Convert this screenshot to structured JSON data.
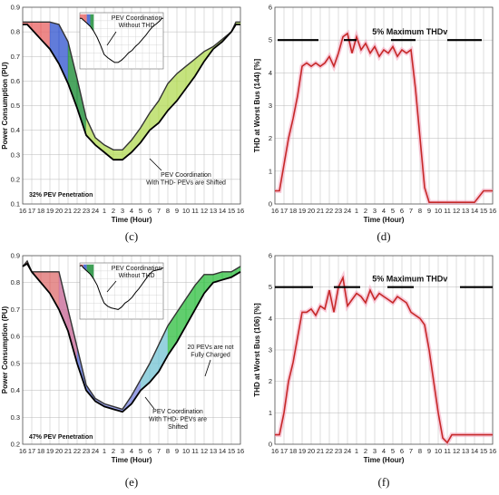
{
  "hours_tick_labels": [
    "16",
    "17",
    "18",
    "19",
    "20",
    "21",
    "22",
    "23",
    "24",
    "1",
    "2",
    "3",
    "4",
    "5",
    "6",
    "7",
    "8",
    "9",
    "10",
    "11",
    "12",
    "13",
    "14",
    "15",
    "16"
  ],
  "chart_data": [
    {
      "id": "c",
      "type": "area",
      "caption": "(c)",
      "xlabel": "Time (Hour)",
      "ylabel": "Power Consumption (PU)",
      "ylim": [
        0.1,
        0.9
      ],
      "yticks": [
        0.1,
        0.2,
        0.3,
        0.4,
        0.5,
        0.6,
        0.7,
        0.8,
        0.9
      ],
      "grid": true,
      "annotations": {
        "inset": "PEV Coordination Without THD",
        "main": "PEV Coordination With THD- PEVs are Shifted",
        "penetration": "32% PEV Penetration"
      },
      "series": [
        {
          "name": "",
          "x": [
            0,
            0.5,
            1,
            2,
            3,
            4,
            5,
            6,
            7,
            8,
            9,
            10,
            11,
            12,
            13,
            14,
            15,
            16,
            17,
            18,
            19,
            20,
            21,
            22,
            23,
            23.5,
            24
          ],
          "y": [
            0.83,
            0.83,
            0.81,
            0.77,
            0.73,
            0.67,
            0.59,
            0.49,
            0.38,
            0.34,
            0.31,
            0.28,
            0.28,
            0.31,
            0.35,
            0.4,
            0.43,
            0.48,
            0.52,
            0.57,
            0.62,
            0.68,
            0.73,
            0.76,
            0.8,
            0.83,
            0.83
          ]
        },
        {
          "name": "",
          "x": [
            0,
            0.5,
            1,
            2,
            3,
            4,
            5,
            6,
            7,
            8,
            9,
            10,
            11,
            12,
            13,
            14,
            15,
            16,
            17,
            18,
            19,
            20,
            21,
            22,
            23,
            23.5,
            24
          ],
          "y": [
            0.84,
            0.84,
            0.84,
            0.84,
            0.84,
            0.83,
            0.76,
            0.61,
            0.45,
            0.37,
            0.34,
            0.32,
            0.32,
            0.36,
            0.41,
            0.47,
            0.52,
            0.59,
            0.63,
            0.66,
            0.69,
            0.72,
            0.74,
            0.77,
            0.8,
            0.84,
            0.84
          ]
        }
      ]
    },
    {
      "id": "d",
      "type": "line",
      "caption": "(d)",
      "xlabel": "Time (Hour)",
      "ylabel": "THD at Worst Bus (144) [%]",
      "ylim": [
        0,
        6
      ],
      "yticks": [
        0,
        1,
        2,
        3,
        4,
        5,
        6
      ],
      "grid": true,
      "limit_label": "5% Maximum THDv",
      "limit_value": 5,
      "series": [
        {
          "name": "",
          "x": [
            0,
            0.5,
            1,
            1.5,
            2,
            2.5,
            3,
            3.5,
            4,
            4.5,
            5,
            5.5,
            6,
            6.5,
            7,
            7.5,
            8,
            8.5,
            9,
            9.5,
            10,
            10.5,
            11,
            11.5,
            12,
            12.5,
            13,
            13.5,
            14,
            14.5,
            15,
            15.5,
            16,
            16.5,
            17,
            17.5,
            18,
            18.5,
            19,
            19.5,
            20,
            21,
            22,
            23,
            23.5,
            24
          ],
          "y": [
            0.4,
            0.4,
            1.2,
            2.0,
            2.6,
            3.3,
            4.2,
            4.3,
            4.2,
            4.3,
            4.2,
            4.3,
            4.5,
            4.2,
            4.6,
            5.1,
            5.2,
            4.6,
            5.1,
            4.7,
            4.9,
            4.6,
            4.8,
            4.5,
            4.7,
            4.6,
            4.8,
            4.5,
            4.7,
            4.6,
            4.7,
            3.5,
            2.0,
            0.5,
            0.05,
            0.05,
            0.05,
            0.05,
            0.05,
            0.05,
            0.05,
            0.05,
            0.05,
            0.4,
            0.4,
            0.4
          ]
        }
      ]
    },
    {
      "id": "e",
      "type": "area",
      "caption": "(e)",
      "xlabel": "Time (Hour)",
      "ylabel": "Power Consumption (PU)",
      "ylim": [
        0.2,
        0.9
      ],
      "yticks": [
        0.2,
        0.3,
        0.4,
        0.5,
        0.6,
        0.7,
        0.8,
        0.9
      ],
      "grid": true,
      "annotations": {
        "inset": "PEV Coordination Without THD",
        "main": "PEV Coordination With THD- PEVs are Shifted",
        "penetration": "47% PEV Penetration",
        "not_charged": "20 PEVs are not Fully Charged"
      },
      "series": [
        {
          "name": "",
          "x": [
            0,
            0.5,
            1,
            2,
            3,
            4,
            5,
            6,
            7,
            8,
            9,
            10,
            11,
            12,
            13,
            14,
            15,
            16,
            17,
            18,
            19,
            20,
            21,
            22,
            23,
            23.5,
            24
          ],
          "y": [
            0.86,
            0.87,
            0.84,
            0.8,
            0.76,
            0.7,
            0.62,
            0.5,
            0.4,
            0.36,
            0.34,
            0.33,
            0.32,
            0.35,
            0.4,
            0.43,
            0.47,
            0.53,
            0.58,
            0.64,
            0.7,
            0.76,
            0.8,
            0.81,
            0.82,
            0.83,
            0.84
          ]
        },
        {
          "name": "",
          "x": [
            0,
            0.5,
            1,
            2,
            3,
            4,
            5,
            6,
            7,
            8,
            9,
            10,
            11,
            12,
            13,
            14,
            15,
            16,
            17,
            18,
            19,
            20,
            21,
            22,
            23,
            23.5,
            24
          ],
          "y": [
            0.86,
            0.88,
            0.84,
            0.84,
            0.84,
            0.84,
            0.7,
            0.56,
            0.42,
            0.37,
            0.35,
            0.34,
            0.33,
            0.38,
            0.44,
            0.5,
            0.57,
            0.64,
            0.69,
            0.74,
            0.79,
            0.83,
            0.83,
            0.84,
            0.84,
            0.85,
            0.86
          ]
        }
      ]
    },
    {
      "id": "f",
      "type": "line",
      "caption": "(f)",
      "xlabel": "Time (Hour)",
      "ylabel": "THD at Worst Bus (106) [%]",
      "ylim": [
        0,
        6
      ],
      "yticks": [
        0,
        1,
        2,
        3,
        4,
        5,
        6
      ],
      "grid": true,
      "limit_label": "5% Maximum THDv",
      "limit_value": 5,
      "series": [
        {
          "name": "",
          "x": [
            0,
            0.5,
            1,
            1.5,
            2,
            2.5,
            3,
            3.5,
            4,
            4.5,
            5,
            5.5,
            6,
            6.5,
            7,
            7.5,
            8,
            8.5,
            9,
            9.5,
            10,
            10.5,
            11,
            11.5,
            12,
            12.5,
            13,
            13.5,
            14,
            14.5,
            15,
            15.5,
            16,
            16.5,
            17,
            17.5,
            18,
            18.5,
            19,
            19.5,
            20,
            20.5,
            21,
            21.5,
            22,
            22.5,
            23,
            23.5,
            24
          ],
          "y": [
            0.3,
            0.3,
            1.0,
            2.0,
            2.6,
            3.4,
            4.2,
            4.2,
            4.3,
            4.1,
            4.4,
            4.3,
            4.9,
            4.2,
            5.0,
            5.3,
            4.4,
            4.6,
            4.8,
            4.7,
            4.5,
            4.9,
            4.6,
            4.8,
            4.7,
            4.6,
            4.5,
            4.7,
            4.6,
            4.5,
            4.2,
            4.1,
            4.0,
            3.8,
            3.0,
            2.0,
            1.0,
            0.2,
            0.05,
            0.3,
            0.3,
            0.3,
            0.3,
            0.3,
            0.3,
            0.3,
            0.3,
            0.3,
            0.3
          ]
        }
      ]
    }
  ]
}
